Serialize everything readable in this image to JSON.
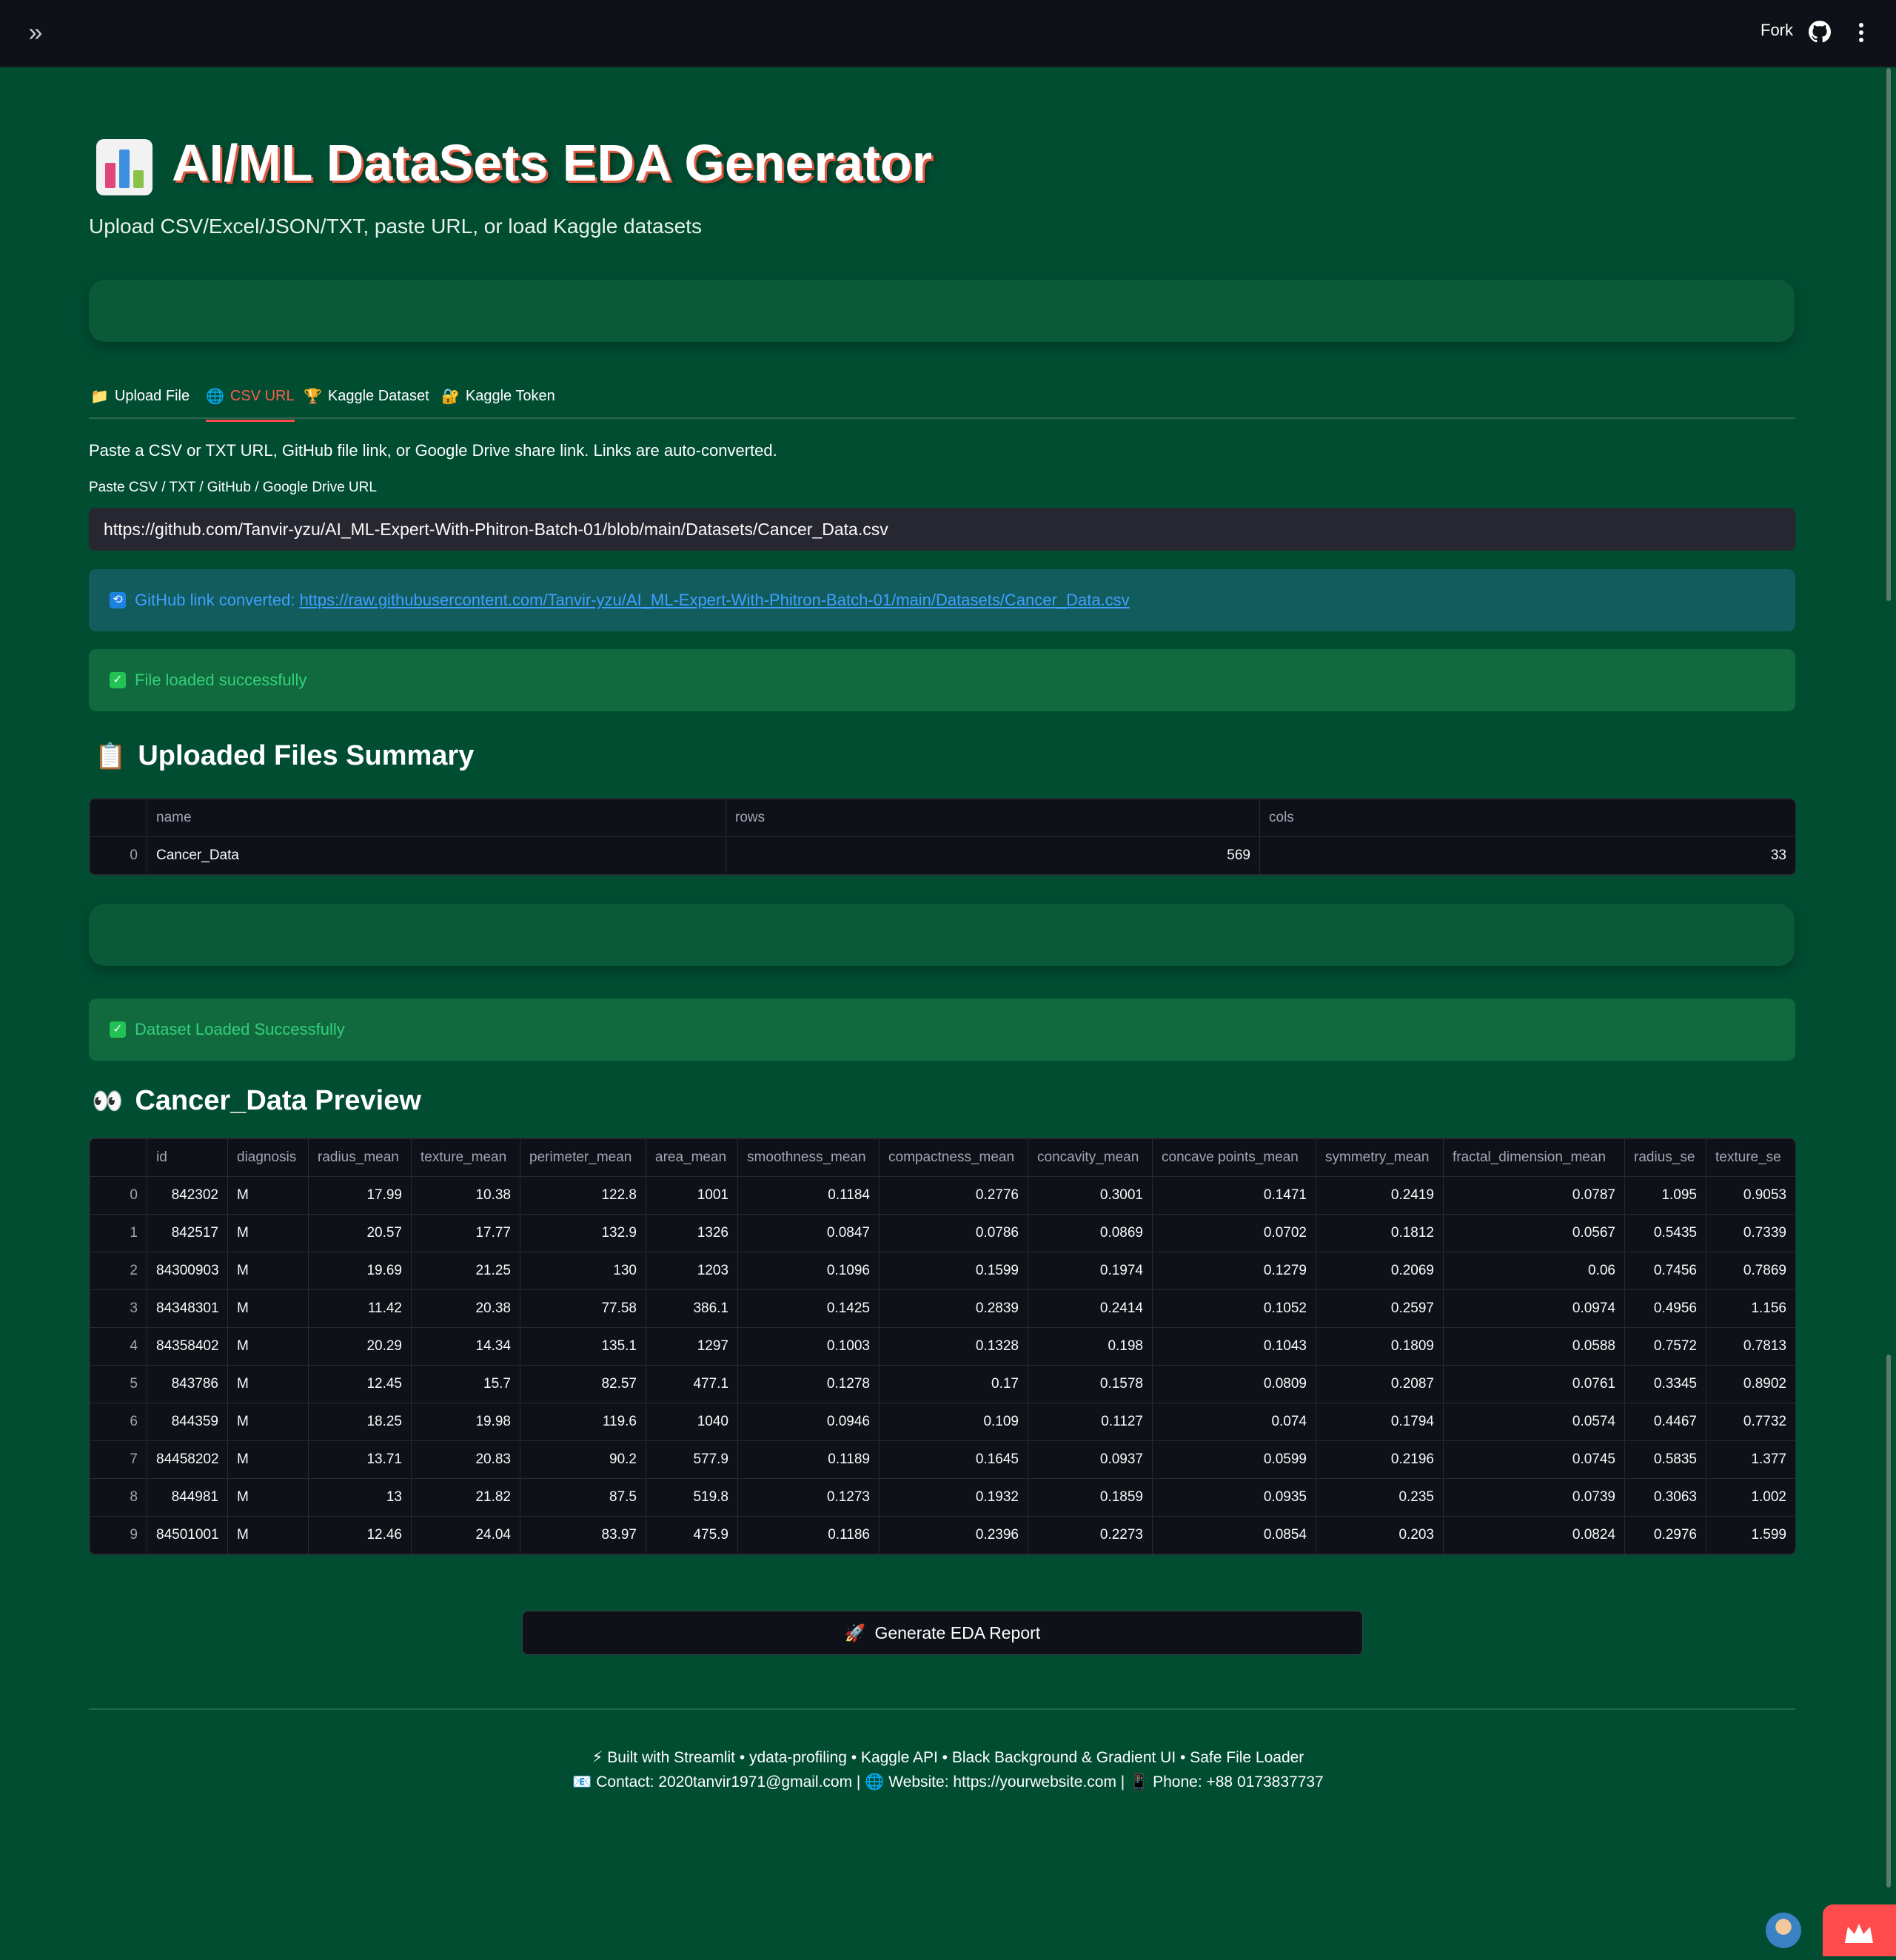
{
  "topbar": {
    "fork_label": "Fork"
  },
  "header": {
    "title": "AI/ML DataSets EDA Generator",
    "subtitle": "Upload CSV/Excel/JSON/TXT, paste URL, or load Kaggle datasets"
  },
  "tabs": [
    {
      "icon": "📁",
      "label": "Upload File",
      "active": false
    },
    {
      "icon": "🌐",
      "label": "CSV URL",
      "active": true
    },
    {
      "icon": "🏆",
      "label": "Kaggle Dataset",
      "active": false
    },
    {
      "icon": "🔐",
      "label": "Kaggle Token",
      "active": false
    }
  ],
  "url_tab": {
    "description": "Paste a CSV or TXT URL, GitHub file link, or Google Drive share link. Links are auto-converted.",
    "input_label": "Paste CSV / TXT / GitHub / Google Drive URL",
    "input_value": "https://github.com/Tanvir-yzu/AI_ML-Expert-With-Phitron-Batch-01/blob/main/Datasets/Cancer_Data.csv",
    "info_prefix": "GitHub link converted:",
    "info_link": "https://raw.githubusercontent.com/Tanvir-yzu/AI_ML-Expert-With-Phitron-Batch-01/main/Datasets/Cancer_Data.csv",
    "success_text": "File loaded successfully"
  },
  "summary": {
    "heading": "Uploaded Files Summary",
    "columns": [
      "name",
      "rows",
      "cols"
    ],
    "rows": [
      [
        "0",
        "Cancer_Data",
        "569",
        "33"
      ]
    ]
  },
  "dataset_success": "Dataset Loaded Successfully",
  "preview": {
    "heading": "Cancer_Data Preview",
    "columns": [
      "id",
      "diagnosis",
      "radius_mean",
      "texture_mean",
      "perimeter_mean",
      "area_mean",
      "smoothness_mean",
      "compactness_mean",
      "concavity_mean",
      "concave points_mean",
      "symmetry_mean",
      "fractal_dimension_mean",
      "radius_se",
      "texture_se"
    ],
    "rows": [
      [
        "0",
        "842302",
        "M",
        "17.99",
        "10.38",
        "122.8",
        "1001",
        "0.1184",
        "0.2776",
        "0.3001",
        "0.1471",
        "0.2419",
        "0.0787",
        "1.095",
        "0.9053"
      ],
      [
        "1",
        "842517",
        "M",
        "20.57",
        "17.77",
        "132.9",
        "1326",
        "0.0847",
        "0.0786",
        "0.0869",
        "0.0702",
        "0.1812",
        "0.0567",
        "0.5435",
        "0.7339"
      ],
      [
        "2",
        "84300903",
        "M",
        "19.69",
        "21.25",
        "130",
        "1203",
        "0.1096",
        "0.1599",
        "0.1974",
        "0.1279",
        "0.2069",
        "0.06",
        "0.7456",
        "0.7869"
      ],
      [
        "3",
        "84348301",
        "M",
        "11.42",
        "20.38",
        "77.58",
        "386.1",
        "0.1425",
        "0.2839",
        "0.2414",
        "0.1052",
        "0.2597",
        "0.0974",
        "0.4956",
        "1.156"
      ],
      [
        "4",
        "84358402",
        "M",
        "20.29",
        "14.34",
        "135.1",
        "1297",
        "0.1003",
        "0.1328",
        "0.198",
        "0.1043",
        "0.1809",
        "0.0588",
        "0.7572",
        "0.7813"
      ],
      [
        "5",
        "843786",
        "M",
        "12.45",
        "15.7",
        "82.57",
        "477.1",
        "0.1278",
        "0.17",
        "0.1578",
        "0.0809",
        "0.2087",
        "0.0761",
        "0.3345",
        "0.8902"
      ],
      [
        "6",
        "844359",
        "M",
        "18.25",
        "19.98",
        "119.6",
        "1040",
        "0.0946",
        "0.109",
        "0.1127",
        "0.074",
        "0.1794",
        "0.0574",
        "0.4467",
        "0.7732"
      ],
      [
        "7",
        "84458202",
        "M",
        "13.71",
        "20.83",
        "90.2",
        "577.9",
        "0.1189",
        "0.1645",
        "0.0937",
        "0.0599",
        "0.2196",
        "0.0745",
        "0.5835",
        "1.377"
      ],
      [
        "8",
        "844981",
        "M",
        "13",
        "21.82",
        "87.5",
        "519.8",
        "0.1273",
        "0.1932",
        "0.1859",
        "0.0935",
        "0.235",
        "0.0739",
        "0.3063",
        "1.002"
      ],
      [
        "9",
        "84501001",
        "M",
        "12.46",
        "24.04",
        "83.97",
        "475.9",
        "0.1186",
        "0.2396",
        "0.2273",
        "0.0854",
        "0.203",
        "0.0824",
        "0.2976",
        "1.599"
      ]
    ]
  },
  "generate_button": "Generate EDA Report",
  "footer": {
    "line1": "Built with Streamlit • ydata-profiling • Kaggle API • Black Background & Gradient UI • Safe File Loader",
    "contact": "Contact: 2020tanvir1971@gmail.com |",
    "website": "Website: https://yourwebsite.com |",
    "phone": "Phone: +88 0173837737"
  },
  "colors": {
    "background": "#004d32",
    "accent": "#ff4b4b",
    "info": "#3ea0ff",
    "success": "#33d17a"
  }
}
